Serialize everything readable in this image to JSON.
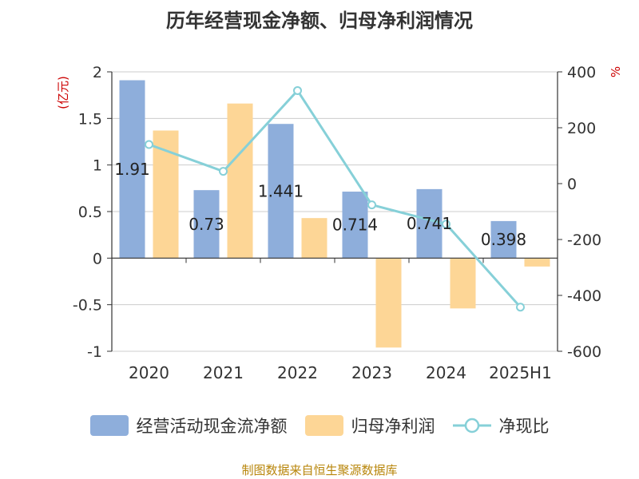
{
  "chart_data": {
    "type": "bar",
    "title": "历年经营现金净额、归母净利润情况",
    "categories": [
      "2020",
      "2021",
      "2022",
      "2023",
      "2024",
      "2025H1"
    ],
    "left_axis": {
      "unit": "(亿元)",
      "ylim": [
        -1,
        2
      ],
      "ticks": [
        "2",
        "1.5",
        "1",
        "0.5",
        "0",
        "-0.5",
        "-1"
      ],
      "tick_values": [
        2,
        1.5,
        1,
        0.5,
        0,
        -0.5,
        -1
      ]
    },
    "right_axis": {
      "unit": "%",
      "ylim": [
        -600,
        400
      ],
      "ticks": [
        "400",
        "200",
        "0",
        "-200",
        "-400",
        "-600"
      ],
      "tick_values": [
        400,
        200,
        0,
        -200,
        -400,
        -600
      ]
    },
    "series": [
      {
        "name": "经营活动现金流净额",
        "type": "bar",
        "axis": "left",
        "color": "#8eaedb",
        "values": [
          1.91,
          0.73,
          1.441,
          0.714,
          0.741,
          0.398
        ],
        "labels": [
          "1.91",
          "0.73",
          "1.441",
          "0.714",
          "0.741",
          "0.398"
        ]
      },
      {
        "name": "归母净利润",
        "type": "bar",
        "axis": "left",
        "color": "#fdd696",
        "values": [
          1.37,
          1.66,
          0.43,
          -0.96,
          -0.54,
          -0.09
        ]
      },
      {
        "name": "净现比",
        "type": "line",
        "axis": "right",
        "color": "#86d0d8",
        "values": [
          140,
          44,
          333,
          -76,
          -145,
          -442
        ]
      }
    ],
    "grid": true,
    "legend_position": "bottom"
  },
  "source_text": "制图数据来自恒生聚源数据库"
}
